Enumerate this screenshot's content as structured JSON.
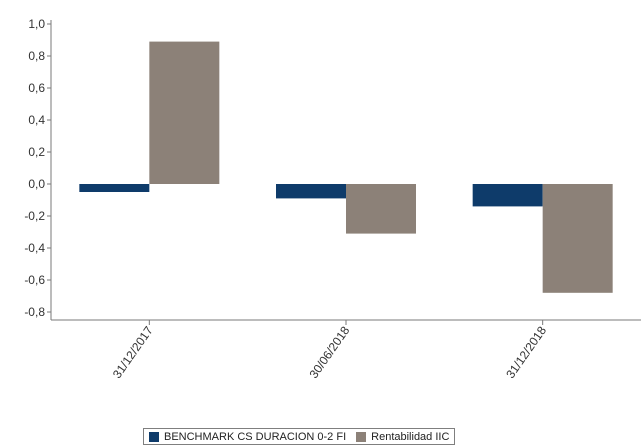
{
  "chart_data": {
    "type": "bar",
    "categories": [
      "31/12/2017",
      "30/06/2018",
      "31/12/2018"
    ],
    "series": [
      {
        "name": "BENCHMARK CS DURACION 0-2 FI",
        "values": [
          -0.05,
          -0.09,
          -0.14
        ],
        "color": "#0e3b6a"
      },
      {
        "name": "Rentabilidad IIC",
        "values": [
          0.89,
          -0.31,
          -0.68
        ],
        "color": "#8c8178"
      }
    ],
    "yticks": [
      "1,0",
      "0,8",
      "0,6",
      "0,4",
      "0,2",
      "0,0",
      "-0,2",
      "-0,4",
      "-0,6",
      "-0,8"
    ],
    "ylim": [
      -0.8,
      1.0
    ],
    "grid": false,
    "legend_position": "bottom"
  }
}
